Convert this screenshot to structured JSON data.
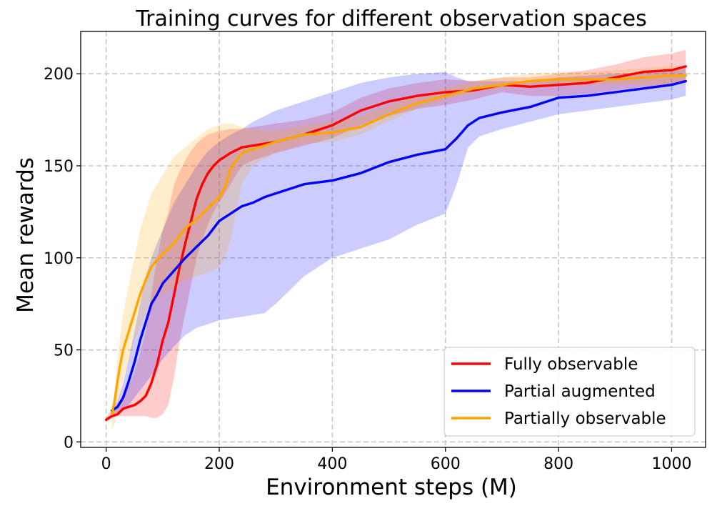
{
  "chart_data": {
    "type": "line",
    "title": "Training curves for different observation spaces",
    "xlabel": "Environment steps (M)",
    "ylabel": "Mean rewards",
    "xlim": [
      -45,
      1060
    ],
    "ylim": [
      -3,
      223
    ],
    "xticks": [
      0,
      200,
      400,
      600,
      800,
      1000
    ],
    "yticks": [
      0,
      50,
      100,
      150,
      200
    ],
    "grid": true,
    "legend_position": "bottom-right",
    "series": [
      {
        "name": "Fully observable",
        "color": "#ff0000",
        "band_color": "#ff0000",
        "band_opacity": 0.2,
        "x": [
          0,
          10,
          20,
          30,
          40,
          50,
          60,
          70,
          80,
          90,
          100,
          110,
          120,
          130,
          140,
          150,
          160,
          170,
          180,
          190,
          200,
          220,
          240,
          260,
          280,
          300,
          350,
          400,
          450,
          500,
          550,
          600,
          650,
          700,
          750,
          800,
          850,
          900,
          950,
          1000,
          1025
        ],
        "y": [
          12,
          14,
          15,
          18,
          19,
          20,
          22,
          25,
          32,
          42,
          55,
          65,
          80,
          95,
          108,
          120,
          132,
          140,
          146,
          150,
          153,
          157,
          160,
          161,
          162,
          163,
          167,
          172,
          180,
          185,
          188,
          190,
          191,
          194,
          193,
          194,
          195,
          198,
          201,
          202,
          204
        ],
        "lower": [
          11,
          13,
          14,
          14,
          14,
          14,
          14,
          14,
          13,
          13,
          15,
          20,
          35,
          55,
          70,
          85,
          100,
          110,
          118,
          125,
          130,
          140,
          150,
          153,
          155,
          157,
          161,
          165,
          172,
          177,
          181,
          183,
          186,
          190,
          188,
          188,
          189,
          191,
          193,
          194,
          196
        ],
        "upper": [
          14,
          17,
          20,
          26,
          30,
          38,
          48,
          60,
          80,
          100,
          115,
          125,
          140,
          147,
          153,
          158,
          162,
          165,
          167,
          168,
          169,
          170,
          170,
          171,
          172,
          173,
          175,
          179,
          187,
          192,
          195,
          197,
          196,
          198,
          198,
          200,
          202,
          205,
          209,
          211,
          213
        ]
      },
      {
        "name": "Partial augmented",
        "color": "#0000ff",
        "band_color": "#0000ff",
        "band_opacity": 0.2,
        "x": [
          10,
          20,
          30,
          40,
          50,
          60,
          70,
          80,
          90,
          100,
          120,
          140,
          160,
          180,
          200,
          220,
          240,
          260,
          280,
          300,
          350,
          400,
          450,
          500,
          550,
          600,
          620,
          640,
          660,
          700,
          750,
          800,
          850,
          900,
          950,
          1000,
          1025
        ],
        "y": [
          17,
          19,
          24,
          33,
          43,
          55,
          65,
          75,
          80,
          86,
          93,
          100,
          106,
          112,
          120,
          124,
          128,
          130,
          133,
          135,
          140,
          142,
          146,
          152,
          156,
          159,
          165,
          172,
          176,
          179,
          182,
          187,
          188,
          190,
          192,
          194,
          196
        ],
        "lower": [
          15,
          16,
          17,
          20,
          24,
          28,
          32,
          36,
          40,
          45,
          52,
          58,
          62,
          64,
          66,
          67,
          68,
          69,
          70,
          75,
          90,
          100,
          105,
          110,
          118,
          124,
          140,
          160,
          166,
          170,
          174,
          178,
          180,
          182,
          184,
          186,
          188
        ],
        "upper": [
          19,
          22,
          32,
          45,
          60,
          75,
          90,
          100,
          108,
          115,
          130,
          140,
          150,
          158,
          163,
          167,
          170,
          174,
          177,
          180,
          185,
          190,
          195,
          198,
          200,
          201,
          198,
          196,
          196,
          196,
          196,
          198,
          199,
          200,
          201,
          202,
          203
        ]
      },
      {
        "name": "Partially observable",
        "color": "#ffa500",
        "band_color": "#ffa500",
        "band_opacity": 0.2,
        "x": [
          10,
          15,
          20,
          25,
          30,
          40,
          50,
          60,
          70,
          80,
          90,
          100,
          120,
          140,
          160,
          180,
          200,
          210,
          220,
          230,
          240,
          260,
          280,
          300,
          350,
          400,
          450,
          500,
          550,
          600,
          650,
          700,
          750,
          800,
          850,
          900,
          950,
          1000,
          1025
        ],
        "y": [
          15,
          22,
          33,
          42,
          50,
          60,
          70,
          80,
          88,
          95,
          99,
          102,
          108,
          116,
          121,
          127,
          133,
          138,
          148,
          153,
          157,
          159,
          161,
          163,
          167,
          168,
          171,
          178,
          184,
          188,
          192,
          194,
          196,
          197,
          197,
          197,
          198,
          199,
          199
        ],
        "lower": [
          6,
          10,
          18,
          26,
          34,
          44,
          55,
          62,
          70,
          75,
          78,
          80,
          84,
          88,
          90,
          92,
          95,
          100,
          110,
          125,
          140,
          150,
          154,
          157,
          162,
          163,
          167,
          174,
          181,
          186,
          190,
          192,
          194,
          194,
          194,
          194,
          194,
          194,
          194
        ],
        "upper": [
          18,
          28,
          45,
          58,
          70,
          85,
          100,
          115,
          125,
          135,
          140,
          145,
          155,
          160,
          165,
          170,
          172,
          173,
          173,
          172,
          171,
          170,
          169,
          169,
          172,
          174,
          177,
          183,
          188,
          192,
          196,
          198,
          200,
          201,
          201,
          202,
          203,
          204,
          204
        ]
      }
    ]
  }
}
